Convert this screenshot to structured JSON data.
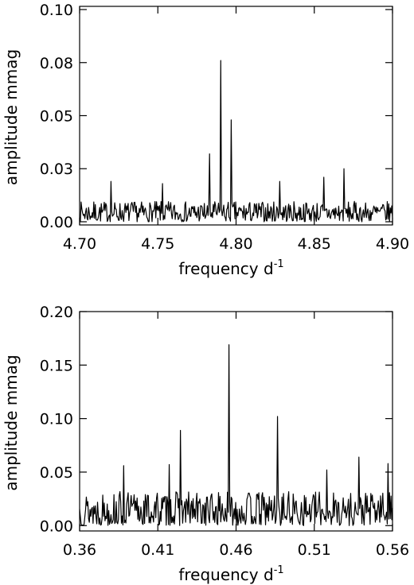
{
  "chart_data": [
    {
      "type": "line",
      "title": "",
      "xlabel": "frequency d",
      "xlabel_superscript": "-1",
      "ylabel": "amplitude mmag",
      "xlim": [
        4.7,
        4.9
      ],
      "ylim": [
        -0.0015,
        0.1015
      ],
      "xticks": [
        "4.70",
        "4.75",
        "4.80",
        "4.85",
        "4.90"
      ],
      "xtick_values": [
        4.7,
        4.75,
        4.8,
        4.85,
        4.9
      ],
      "yticks": [
        "0.00",
        "0.03",
        "0.05",
        "0.08",
        "0.10"
      ],
      "ytick_values": [
        0.0,
        0.025,
        0.05,
        0.075,
        0.1
      ],
      "series": [
        {
          "x_start": 4.7,
          "x_end": 4.9,
          "n": 420,
          "noise_level": 0.006,
          "noise_seed": 7,
          "peaks": [
            {
              "x": 4.783,
              "y": 0.032
            },
            {
              "x": 4.79,
              "y": 0.076
            },
            {
              "x": 4.797,
              "y": 0.048
            },
            {
              "x": 4.72,
              "y": 0.019
            },
            {
              "x": 4.753,
              "y": 0.018
            },
            {
              "x": 4.828,
              "y": 0.019
            },
            {
              "x": 4.856,
              "y": 0.021
            },
            {
              "x": 4.869,
              "y": 0.025
            }
          ]
        }
      ]
    },
    {
      "type": "line",
      "title": "",
      "xlabel": "frequency d",
      "xlabel_superscript": "-1",
      "ylabel": "amplitude mmag",
      "xlim": [
        0.36,
        0.56
      ],
      "ylim": [
        -0.005,
        0.2
      ],
      "xticks": [
        "0.36",
        "0.41",
        "0.46",
        "0.51",
        "0.56"
      ],
      "xtick_values": [
        0.36,
        0.41,
        0.46,
        0.51,
        0.56
      ],
      "yticks": [
        "0.00",
        "0.05",
        "0.10",
        "0.15",
        "0.20"
      ],
      "ytick_values": [
        0.0,
        0.05,
        0.1,
        0.15,
        0.2
      ],
      "series": [
        {
          "x_start": 0.36,
          "x_end": 0.56,
          "n": 420,
          "noise_level": 0.02,
          "noise_seed": 13,
          "peaks": [
            {
              "x": 0.4245,
              "y": 0.089
            },
            {
              "x": 0.4555,
              "y": 0.169
            },
            {
              "x": 0.4865,
              "y": 0.102
            },
            {
              "x": 0.388,
              "y": 0.056
            },
            {
              "x": 0.4175,
              "y": 0.057
            },
            {
              "x": 0.518,
              "y": 0.052
            },
            {
              "x": 0.5385,
              "y": 0.064
            },
            {
              "x": 0.557,
              "y": 0.058
            }
          ]
        }
      ]
    }
  ]
}
